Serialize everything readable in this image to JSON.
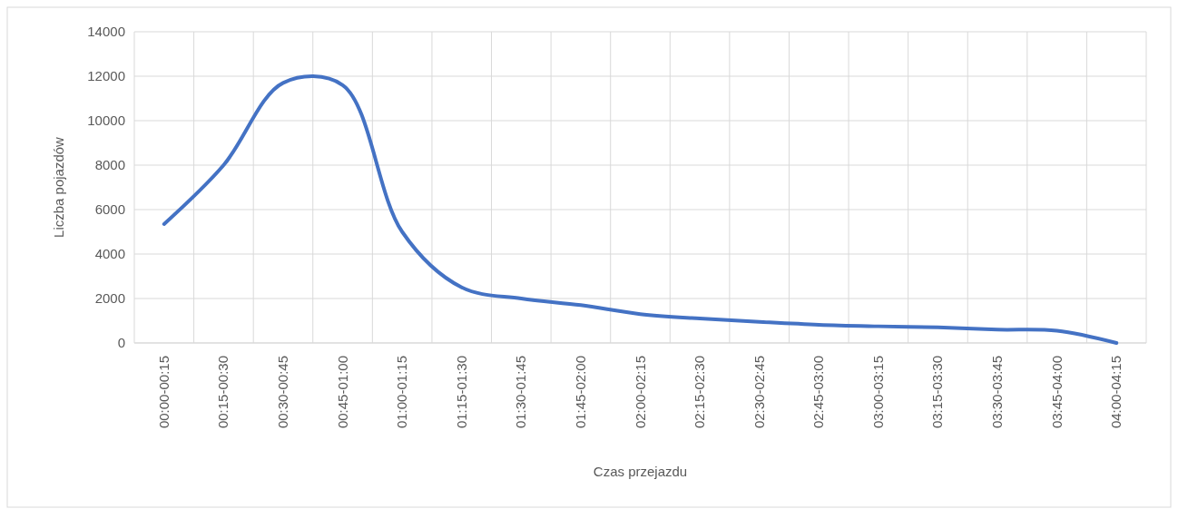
{
  "chart_data": {
    "type": "line",
    "xlabel": "Czas przejazdu",
    "ylabel": "Liczba pojazdów",
    "categories": [
      "00:00-00:15",
      "00:15-00:30",
      "00:30-00:45",
      "00:45-01:00",
      "01:00-01:15",
      "01:15-01:30",
      "01:30-01:45",
      "01:45-02:00",
      "02:00-02:15",
      "02:15-02:30",
      "02:30-02:45",
      "02:45-03:00",
      "03:00-03:15",
      "03:15-03:30",
      "03:30-03:45",
      "03:45-04:00",
      "04:00-04:15"
    ],
    "series": [
      {
        "color": "#4472c4",
        "values": [
          5350,
          8000,
          11700,
          11600,
          5000,
          2500,
          2000,
          1700,
          1300,
          1100,
          950,
          820,
          750,
          700,
          600,
          550,
          0
        ]
      }
    ],
    "ylim": [
      0,
      14000
    ],
    "yticks": [
      0,
      2000,
      4000,
      6000,
      8000,
      10000,
      12000,
      14000
    ],
    "grid": true,
    "marker": "none",
    "line_style": "solid"
  }
}
